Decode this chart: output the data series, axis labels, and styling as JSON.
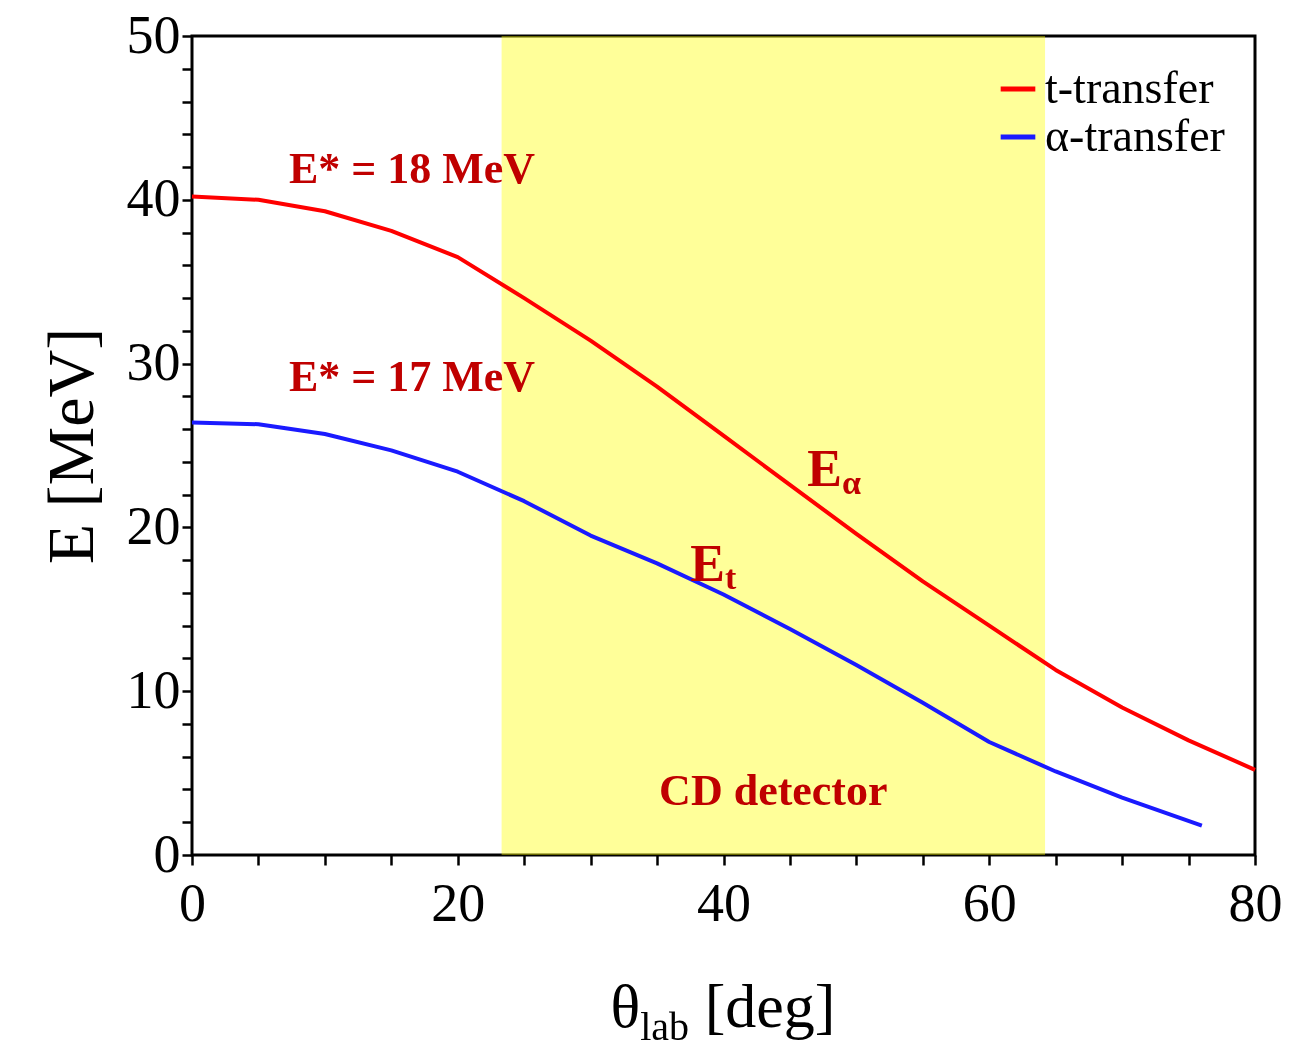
{
  "chart_data": {
    "type": "line",
    "xlabel": "θ$_{lab}$ [deg]",
    "ylabel": "E [MeV]",
    "xlim": [
      0,
      80
    ],
    "ylim": [
      0,
      50
    ],
    "xticks": [
      0,
      {
        "value": 5,
        "label": null
      },
      {
        "value": 10,
        "label": null
      },
      {
        "value": 15,
        "label": null
      },
      20,
      {
        "value": 25,
        "label": null
      },
      {
        "value": 30,
        "label": null
      },
      {
        "value": 35,
        "label": null
      },
      40,
      {
        "value": 45,
        "label": null
      },
      {
        "value": 50,
        "label": null
      },
      {
        "value": 55,
        "label": null
      },
      60,
      {
        "value": 65,
        "label": null
      },
      {
        "value": 70,
        "label": null
      },
      {
        "value": 75,
        "label": null
      },
      80
    ],
    "yticks": [
      0,
      {
        "value": 2,
        "label": null
      },
      {
        "value": 4,
        "label": null
      },
      {
        "value": 6,
        "label": null
      },
      {
        "value": 8,
        "label": null
      },
      10,
      {
        "value": 12,
        "label": null
      },
      {
        "value": 14,
        "label": null
      },
      {
        "value": 16,
        "label": null
      },
      {
        "value": 18,
        "label": null
      },
      20,
      {
        "value": 22,
        "label": null
      },
      {
        "value": 24,
        "label": null
      },
      {
        "value": 26,
        "label": null
      },
      {
        "value": 28,
        "label": null
      },
      30,
      {
        "value": 32,
        "label": null
      },
      {
        "value": 34,
        "label": null
      },
      {
        "value": 36,
        "label": null
      },
      {
        "value": 38,
        "label": null
      },
      40,
      {
        "value": 42,
        "label": null
      },
      {
        "value": 44,
        "label": null
      },
      {
        "value": 46,
        "label": null
      },
      {
        "value": 48,
        "label": null
      },
      50
    ],
    "series": [
      {
        "name": "t-transfer",
        "color": "#ff0000",
        "x": [
          0,
          5,
          10,
          15,
          20,
          25,
          30,
          35,
          40,
          45,
          50,
          55,
          60,
          65,
          70,
          75,
          80
        ],
        "values": [
          40.2,
          40.0,
          39.3,
          38.1,
          36.5,
          34.0,
          31.4,
          28.6,
          25.6,
          22.6,
          19.6,
          16.7,
          14.0,
          11.3,
          9.0,
          7.0,
          5.2
        ]
      },
      {
        "name": "α-transfer",
        "color": "#1a1aff",
        "x": [
          0,
          5,
          10,
          15,
          20,
          25,
          30,
          35,
          40,
          45,
          50,
          55,
          60,
          65,
          70,
          76
        ],
        "values": [
          26.4,
          26.3,
          25.7,
          24.7,
          23.4,
          21.6,
          19.5,
          17.8,
          15.9,
          13.8,
          11.6,
          9.3,
          6.9,
          5.1,
          3.5,
          1.8
        ]
      }
    ],
    "bands": [
      {
        "axis": "x",
        "from": 23.3,
        "to": 64.2,
        "label": "CD detector",
        "color": "#ffff00"
      }
    ],
    "annotations": [
      "E* = 18 MeV",
      "E* = 17 MeV",
      "E$_{α}$",
      "E$_{t}$"
    ],
    "legend": "top right",
    "grid": false,
    "marker": "none",
    "line_style": "solid"
  }
}
